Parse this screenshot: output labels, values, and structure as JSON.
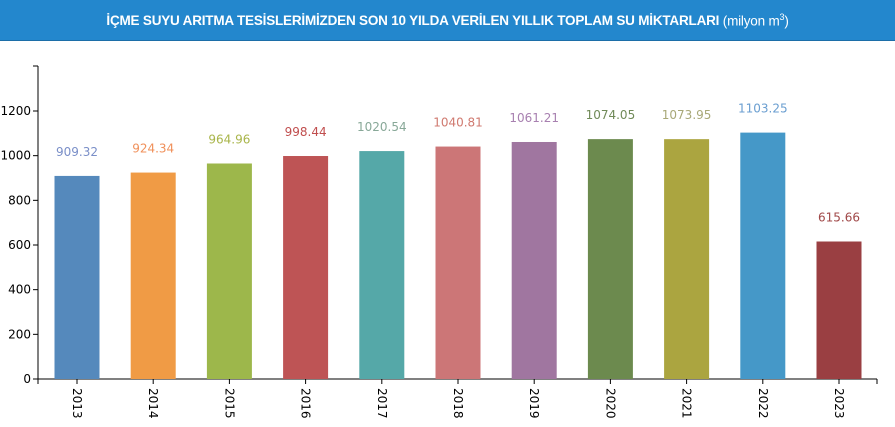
{
  "header": {
    "title": "İÇME SUYU ARITMA TESİSLERİMİZDEN SON 10 YILDA VERİLEN YILLIK TOPLAM SU MİKTARLARI",
    "unit_prefix": "(milyon m",
    "unit_sup": "3",
    "unit_suffix": ")"
  },
  "chart_data": {
    "type": "bar",
    "title": "İÇME SUYU ARITMA TESİSLERİMİZDEN SON 10 YILDA VERİLEN YILLIK TOPLAM SU MİKTARLARI (milyon m3)",
    "categories": [
      "2013",
      "2014",
      "2015",
      "2016",
      "2017",
      "2018",
      "2019",
      "2020",
      "2021",
      "2022",
      "2023"
    ],
    "values": [
      909.32,
      924.34,
      964.96,
      998.44,
      1020.54,
      1040.81,
      1061.21,
      1074.05,
      1073.95,
      1103.25,
      615.66
    ],
    "labels": [
      "909.32",
      "924.34",
      "964.96",
      "998.44",
      "1020.54",
      "1040.81",
      "1061.21",
      "1074.05",
      "1073.95",
      "1103.25",
      "615.66"
    ],
    "colors": [
      "#5589bc",
      "#f09b45",
      "#9db74b",
      "#be5455",
      "#55a8a8",
      "#cc7677",
      "#a076a0",
      "#6c8a4e",
      "#aba540",
      "#4598c8",
      "#9a3f42"
    ],
    "label_colors": [
      "#7a8fc8",
      "#f0905a",
      "#a9b54a",
      "#c04e4e",
      "#88a898",
      "#d07a70",
      "#a880b0",
      "#708a58",
      "#a8a878",
      "#6a9ed0",
      "#a04848"
    ],
    "yticks": [
      "0",
      "200",
      "400",
      "600",
      "800",
      "1000",
      "1200"
    ],
    "ytick_values": [
      0,
      200,
      400,
      600,
      800,
      1000,
      1200
    ],
    "ylim": [
      0,
      1400
    ],
    "xlabel": "",
    "ylabel": "",
    "grid": false,
    "legend": "none"
  }
}
